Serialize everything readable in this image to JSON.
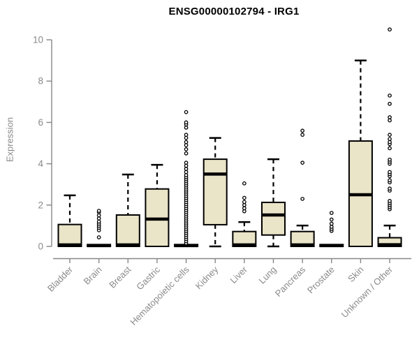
{
  "chart_data": {
    "type": "boxplot",
    "title": "ENSG00000102794 - IRG1",
    "ylabel": "Expression",
    "xlabel": "",
    "ylim": [
      0,
      10.6
    ],
    "yticks": [
      0,
      2,
      4,
      6,
      8,
      10
    ],
    "grid": false,
    "legend": "none",
    "categories": [
      "Bladder",
      "Brain",
      "Breast",
      "Gastric",
      "Hematopoietic cells",
      "Kidney",
      "Liver",
      "Lung",
      "Pancreas",
      "Prostate",
      "Skin",
      "Unknown / Other"
    ],
    "series": [
      {
        "name": "Bladder",
        "q1": 0,
        "median": 0.07,
        "q3": 1.06,
        "whisker_low": 0,
        "whisker_high": 2.47,
        "outliers": []
      },
      {
        "name": "Brain",
        "q1": 0,
        "median": 0.04,
        "q3": 0.09,
        "whisker_low": 0,
        "whisker_high": 0.09,
        "outliers": [
          0.44,
          0.78,
          0.9,
          1.0,
          1.1,
          1.2,
          1.35,
          1.5,
          1.65,
          1.72
        ]
      },
      {
        "name": "Breast",
        "q1": 0,
        "median": 0.07,
        "q3": 1.52,
        "whisker_low": 0,
        "whisker_high": 3.48,
        "outliers": []
      },
      {
        "name": "Gastric",
        "q1": 0,
        "median": 1.32,
        "q3": 2.78,
        "whisker_low": 0,
        "whisker_high": 3.95,
        "outliers": []
      },
      {
        "name": "Hematopoietic cells",
        "q1": 0,
        "median": 0.04,
        "q3": 0.09,
        "whisker_low": 0,
        "whisker_high": 0.09,
        "outliers": [
          0.15,
          0.25,
          0.35,
          0.45,
          0.55,
          0.65,
          0.75,
          0.85,
          0.95,
          1.05,
          1.15,
          1.25,
          1.35,
          1.45,
          1.55,
          1.65,
          1.75,
          1.85,
          1.95,
          2.05,
          2.15,
          2.25,
          2.35,
          2.45,
          2.55,
          2.65,
          2.75,
          2.85,
          2.95,
          3.05,
          3.15,
          3.25,
          3.35,
          3.45,
          3.6,
          3.75,
          3.9,
          4.05,
          4.5,
          4.7,
          4.9,
          5.05,
          5.25,
          5.4,
          5.75,
          5.9,
          6.0,
          6.5
        ]
      },
      {
        "name": "Kidney",
        "q1": 1.05,
        "median": 3.5,
        "q3": 4.22,
        "whisker_low": 0,
        "whisker_high": 5.25,
        "outliers": []
      },
      {
        "name": "Liver",
        "q1": 0,
        "median": 0.07,
        "q3": 0.72,
        "whisker_low": 0,
        "whisker_high": 1.18,
        "outliers": [
          1.7,
          1.85,
          2.0,
          2.15,
          2.35,
          3.05
        ]
      },
      {
        "name": "Lung",
        "q1": 0.55,
        "median": 1.52,
        "q3": 2.13,
        "whisker_low": 0,
        "whisker_high": 4.22,
        "outliers": []
      },
      {
        "name": "Pancreas",
        "q1": 0,
        "median": 0.07,
        "q3": 0.72,
        "whisker_low": 0,
        "whisker_high": 1.01,
        "outliers": [
          2.3,
          4.05,
          5.4,
          5.6
        ]
      },
      {
        "name": "Prostate",
        "q1": 0,
        "median": 0.04,
        "q3": 0.09,
        "whisker_low": 0,
        "whisker_high": 0.09,
        "outliers": [
          0.75,
          0.85,
          0.95,
          1.1,
          1.3,
          1.62
        ]
      },
      {
        "name": "Skin",
        "q1": 0,
        "median": 2.5,
        "q3": 5.1,
        "whisker_low": 0,
        "whisker_high": 9.0,
        "outliers": []
      },
      {
        "name": "Unknown / Other",
        "q1": 0,
        "median": 0.08,
        "q3": 0.42,
        "whisker_low": 0,
        "whisker_high": 1.01,
        "outliers": [
          1.8,
          1.9,
          2.0,
          2.1,
          2.2,
          2.7,
          2.8,
          3.1,
          3.2,
          3.4,
          3.5,
          3.6,
          4.0,
          4.1,
          4.2,
          4.75,
          4.95,
          5.05,
          5.2,
          5.4,
          6.1,
          6.25,
          6.9,
          7.3,
          10.5
        ]
      }
    ],
    "colors": {
      "box_fill": "#EAE4C8",
      "box_stroke": "#000000",
      "median": "#000000",
      "whisker": "#000000",
      "outlier_stroke": "#000000",
      "axis": "#878787",
      "axis_text": "#8a8a8a",
      "title": "#000000",
      "background": "#ffffff"
    }
  }
}
